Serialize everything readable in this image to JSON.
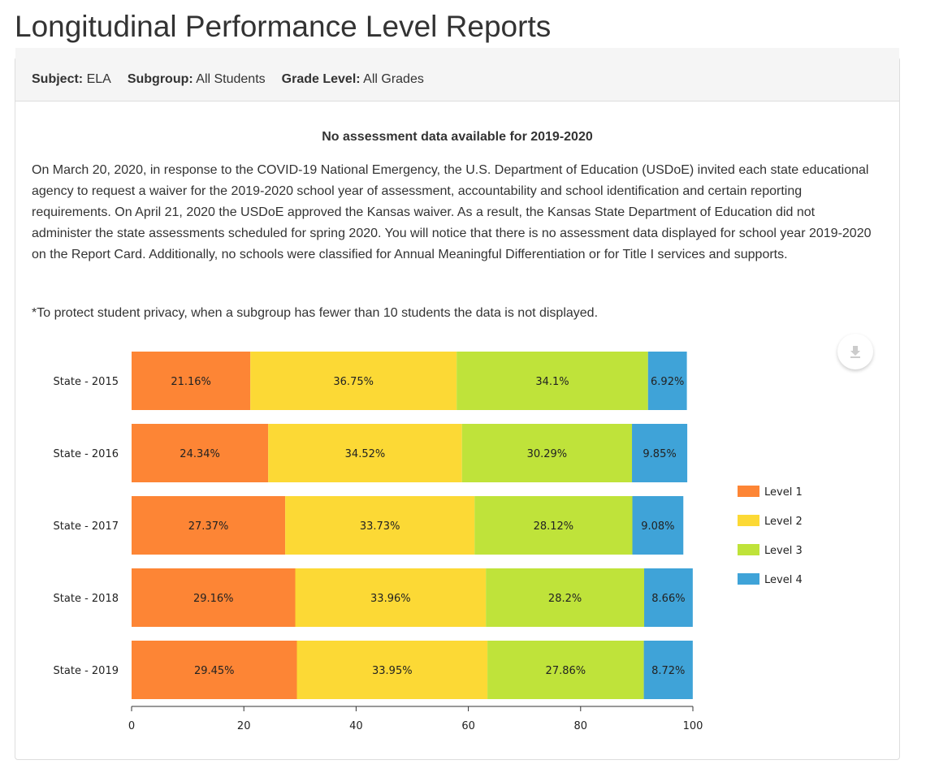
{
  "title": "Longitudinal Performance Level Reports",
  "filters": [
    {
      "label": "Subject:",
      "value": "ELA"
    },
    {
      "label": "Subgroup:",
      "value": "All Students"
    },
    {
      "label": "Grade Level:",
      "value": "All Grades"
    }
  ],
  "notice": "No assessment data available for 2019-2020",
  "paragraph": "On March 20, 2020, in response to the COVID-19 National Emergency, the U.S. Department of Education (USDoE) invited each state educational agency to request a waiver for the 2019-2020 school year of assessment, accountability and school identification and certain reporting requirements. On April 21, 2020 the USDoE approved the Kansas waiver. As a result, the Kansas State Department of Education did not administer the state assessments scheduled for spring 2020. You will notice that there is no assessment data displayed for school year 2019-2020 on the Report Card. Additionally, no schools were classified for Annual Meaningful Differentiation or for Title I services and supports.",
  "privacy_note": "*To protect student privacy, when a subgroup has fewer than 10 students the data is not displayed.",
  "download_icon": "download-icon",
  "chart_data": {
    "type": "bar",
    "orientation": "horizontal",
    "stacked": true,
    "categories": [
      "State - 2015",
      "State - 2016",
      "State - 2017",
      "State - 2018",
      "State - 2019"
    ],
    "series": [
      {
        "name": "Level 1",
        "color": "#fd8535",
        "values": [
          21.16,
          24.34,
          27.37,
          29.16,
          29.45
        ],
        "labels": [
          "21.16%",
          "24.34%",
          "27.37%",
          "29.16%",
          "29.45%"
        ]
      },
      {
        "name": "Level 2",
        "color": "#fcd935",
        "values": [
          36.75,
          34.52,
          33.73,
          33.96,
          33.95
        ],
        "labels": [
          "36.75%",
          "34.52%",
          "33.73%",
          "33.96%",
          "33.95%"
        ]
      },
      {
        "name": "Level 3",
        "color": "#bfe33a",
        "values": [
          34.1,
          30.29,
          28.12,
          28.2,
          27.86
        ],
        "labels": [
          "34.1%",
          "30.29%",
          "28.12%",
          "28.2%",
          "27.86%"
        ]
      },
      {
        "name": "Level 4",
        "color": "#3fa3d8",
        "values": [
          6.92,
          9.85,
          9.08,
          8.66,
          8.72
        ],
        "labels": [
          "6.92%",
          "9.85%",
          "9.08%",
          "8.66%",
          "8.72%"
        ]
      }
    ],
    "xlim": [
      0,
      100
    ],
    "xticks": [
      "0",
      "20",
      "40",
      "60",
      "80",
      "100"
    ],
    "legend": "right",
    "grid": false
  }
}
